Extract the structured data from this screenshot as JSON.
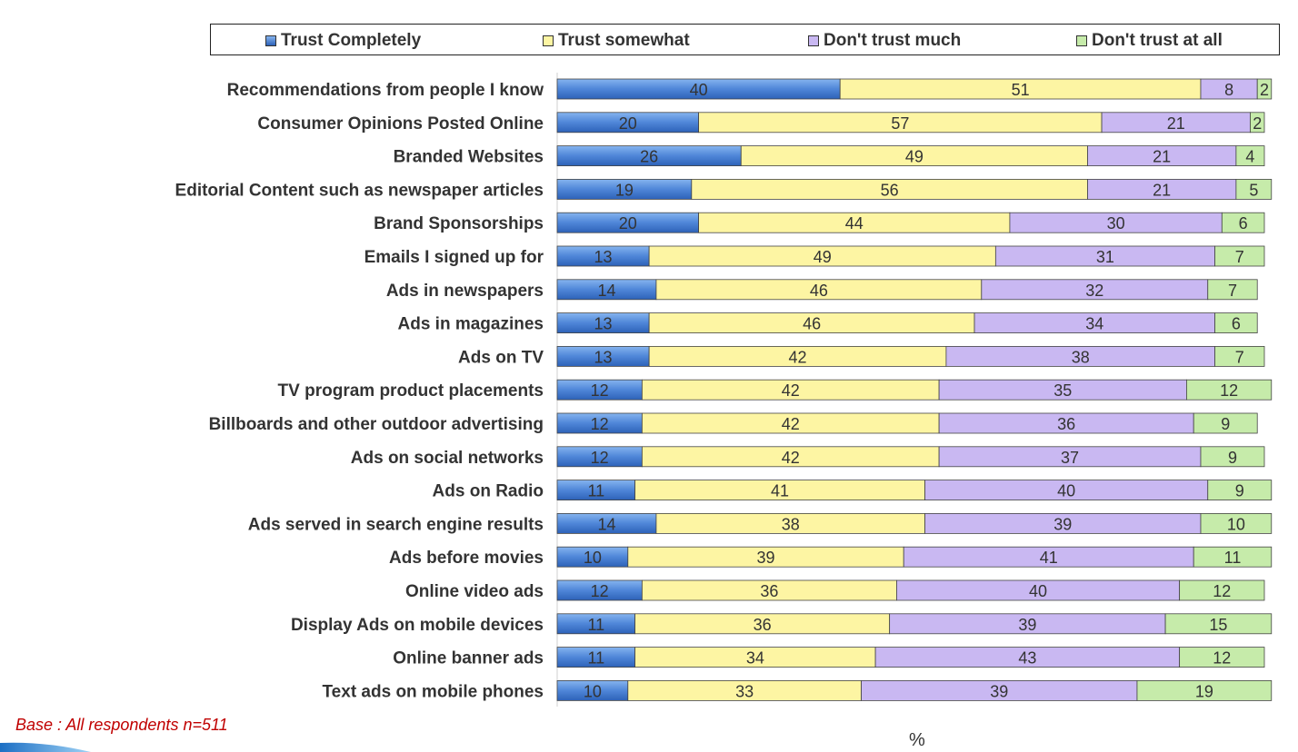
{
  "chart_data": {
    "type": "bar",
    "orientation": "horizontal",
    "stacked": true,
    "categories": [
      "Recommendations from people I know",
      "Consumer Opinions Posted Online",
      "Branded Websites",
      "Editorial Content such as newspaper articles",
      "Brand Sponsorships",
      "Emails I signed up for",
      "Ads in newspapers",
      "Ads in magazines",
      "Ads on TV",
      "TV program product placements",
      "Billboards and other outdoor advertising",
      "Ads on social networks",
      "Ads on Radio",
      "Ads served in search engine results",
      "Ads before movies",
      "Online video ads",
      "Display Ads on mobile devices",
      "Online banner ads",
      "Text ads on mobile phones"
    ],
    "series": [
      {
        "name": "Trust Completely",
        "color": "#4f86d8",
        "values": [
          40,
          20,
          26,
          19,
          20,
          13,
          14,
          13,
          13,
          12,
          12,
          12,
          11,
          14,
          10,
          12,
          11,
          11,
          10
        ]
      },
      {
        "name": "Trust somewhat",
        "color": "#fdf5a3",
        "values": [
          51,
          57,
          49,
          56,
          44,
          49,
          46,
          46,
          42,
          42,
          42,
          42,
          41,
          38,
          39,
          36,
          36,
          34,
          33
        ]
      },
      {
        "name": "Don't trust much",
        "color": "#c9b8f2",
        "values": [
          8,
          21,
          21,
          21,
          30,
          31,
          32,
          34,
          38,
          35,
          36,
          37,
          40,
          39,
          41,
          40,
          39,
          43,
          39
        ]
      },
      {
        "name": "Don't trust at all",
        "color": "#c6ebaa",
        "values": [
          2,
          2,
          4,
          5,
          6,
          7,
          7,
          6,
          7,
          12,
          9,
          9,
          9,
          10,
          11,
          12,
          15,
          12,
          19
        ]
      }
    ],
    "xlabel": "%",
    "ylabel": "",
    "title": "",
    "legend_position": "top",
    "grid": false
  },
  "footnote": "Base : All respondents n=511"
}
